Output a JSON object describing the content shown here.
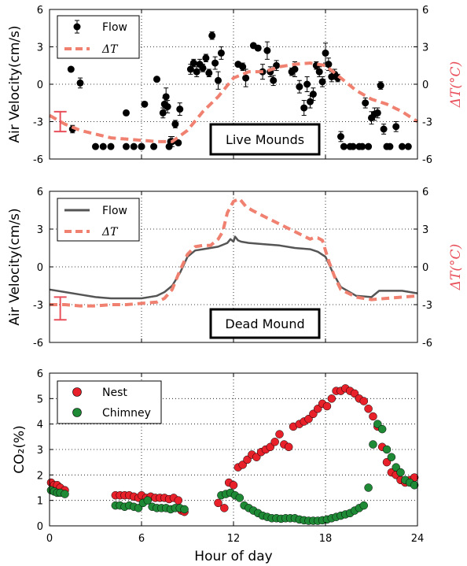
{
  "figure": {
    "xlabel": "Hour of day"
  },
  "chart_data": [
    {
      "type": "scatter",
      "panel": "top",
      "ylabel": "Air Velocity(cm/s)",
      "ylabel_right": "ΔT(°C)",
      "xlim": [
        0,
        24
      ],
      "ylim": [
        -6,
        6
      ],
      "ylim_right": [
        -6,
        6
      ],
      "yticks": [
        "-6",
        "-3",
        "0",
        "3",
        "6"
      ],
      "yticks_right": [
        "-6",
        "-3",
        "0",
        "3",
        "6"
      ],
      "grid": true,
      "legend_position": "top-left",
      "annotation": "Live Mounds",
      "legend": [
        {
          "label": "Flow",
          "kind": "marker",
          "color": "#000000"
        },
        {
          "label": "ΔT",
          "kind": "dashed",
          "color": "#f08070"
        }
      ],
      "error_bar_legend": {
        "x": 0.7,
        "center": -3.0,
        "half": 0.8,
        "color": "#e8505b"
      },
      "series": [
        {
          "name": "Flow",
          "kind": "points",
          "color": "#000000",
          "x": [
            1.5,
            2.0,
            1.4,
            3.0,
            3.5,
            4.0,
            5.0,
            5.0,
            5.5,
            6.0,
            6.2,
            6.0,
            6.8,
            7.0,
            7.4,
            7.5,
            7.6,
            7.7,
            7.8,
            7.9,
            8.0,
            8.2,
            8.5,
            8.4,
            9.2,
            9.4,
            9.6,
            9.8,
            10.0,
            10.2,
            10.4,
            10.6,
            10.8,
            11.0,
            11.2,
            12.3,
            12.6,
            12.8,
            13.3,
            13.6,
            13.9,
            14.2,
            14.4,
            14.6,
            14.8,
            15.8,
            16.0,
            16.3,
            16.6,
            16.8,
            17.0,
            17.2,
            17.4,
            17.6,
            17.8,
            18.0,
            18.2,
            18.4,
            18.6,
            18.8,
            19.0,
            19.2,
            19.6,
            19.8,
            20.2,
            20.4,
            20.6,
            20.8,
            21.0,
            21.2,
            21.4,
            21.6,
            21.8,
            22.0,
            22.2,
            22.6,
            23.0,
            23.4
          ],
          "y": [
            -3.6,
            0.1,
            1.2,
            -5.0,
            -5.0,
            -5.0,
            -5.0,
            -2.3,
            -5.0,
            -5.0,
            -1.6,
            -5.0,
            -5.0,
            0.4,
            -2.3,
            -1.6,
            -1.0,
            -1.8,
            -5.0,
            -4.6,
            -4.6,
            -3.2,
            -2.0,
            -4.7,
            1.2,
            1.7,
            1.0,
            1.6,
            1.3,
            2.1,
            0.9,
            3.9,
            1.7,
            0.3,
            2.5,
            1.6,
            1.4,
            0.5,
            3.1,
            2.9,
            1.0,
            2.7,
            1.0,
            0.3,
            1.5,
            1.0,
            1.2,
            -0.2,
            -1.9,
            0.0,
            -1.4,
            -0.8,
            1.5,
            1.0,
            0.2,
            2.5,
            1.6,
            0.6,
            0.8,
            0.5,
            -4.2,
            -5.0,
            -5.0,
            -5.0,
            -5.0,
            -5.0,
            -1.5,
            -5.0,
            -2.7,
            -2.4,
            -2.3,
            -0.1,
            -3.6,
            -5.0,
            -5.0,
            -3.4,
            -5.0,
            -5.0
          ],
          "err": [
            0.3,
            0.4,
            0,
            0,
            0,
            0,
            0,
            0,
            0,
            0,
            0,
            0,
            0,
            0,
            0.4,
            0.5,
            0.7,
            0.5,
            0,
            0.4,
            0.4,
            0.3,
            0.5,
            0,
            0.4,
            0.3,
            0.4,
            0.4,
            0.3,
            0.3,
            0.3,
            0.3,
            0.5,
            0.7,
            0.5,
            0,
            0.3,
            0.7,
            0,
            0.2,
            0.6,
            0.7,
            0.4,
            0.4,
            0.4,
            0.3,
            0.6,
            0.5,
            0.6,
            0.6,
            0.5,
            0.5,
            0.3,
            0.4,
            0.4,
            0.8,
            0.5,
            0.4,
            0.4,
            0.3,
            0.4,
            0,
            0,
            0,
            0,
            0,
            0.4,
            0,
            0.5,
            0.5,
            0.4,
            0.3,
            0.4,
            0,
            0,
            0.4,
            0,
            0
          ]
        },
        {
          "name": "ΔT",
          "kind": "dashed",
          "color": "#f08070",
          "axis": "right",
          "x": [
            0,
            1,
            2,
            3,
            4,
            5,
            6,
            7,
            8,
            9,
            10,
            11,
            12,
            13,
            14,
            15,
            16,
            17,
            18,
            19,
            20,
            21,
            22,
            23,
            24
          ],
          "y": [
            -2.5,
            -3.2,
            -3.7,
            -4.0,
            -4.3,
            -4.4,
            -4.5,
            -4.6,
            -4.6,
            -3.7,
            -2.2,
            -1.0,
            0.5,
            1.0,
            1.0,
            1.4,
            1.6,
            1.7,
            1.5,
            0.5,
            -0.5,
            -1.2,
            -1.6,
            -2.2,
            -3.0
          ]
        }
      ]
    },
    {
      "type": "line",
      "panel": "middle",
      "ylabel": "Air Velocity(cm/s)",
      "ylabel_right": "ΔT(°C)",
      "xlim": [
        0,
        24
      ],
      "ylim": [
        -6,
        6
      ],
      "ylim_right": [
        -6,
        6
      ],
      "yticks": [
        "-6",
        "-3",
        "0",
        "3",
        "6"
      ],
      "yticks_right": [
        "-6",
        "-3",
        "0",
        "3",
        "6"
      ],
      "grid": true,
      "legend_position": "top-left",
      "annotation": "Dead Mound",
      "legend": [
        {
          "label": "Flow",
          "kind": "solid",
          "color": "#555555"
        },
        {
          "label": "ΔT",
          "kind": "dashed",
          "color": "#f08070"
        }
      ],
      "error_bar_legend": {
        "x": 0.7,
        "center": -3.3,
        "half": 0.9,
        "color": "#e8505b"
      },
      "series": [
        {
          "name": "Flow",
          "kind": "solid",
          "color": "#555555",
          "x": [
            0,
            1,
            2,
            3,
            4,
            5,
            6,
            7,
            7.5,
            8,
            8.5,
            9,
            9.5,
            10,
            11,
            11.6,
            11.8,
            12,
            12.1,
            12.3,
            12.5,
            13,
            14,
            15,
            16,
            17,
            17.5,
            18,
            18.5,
            19,
            20,
            21,
            21.5,
            22,
            23,
            24
          ],
          "y": [
            -1.8,
            -2.0,
            -2.2,
            -2.4,
            -2.5,
            -2.5,
            -2.5,
            -2.3,
            -2.0,
            -1.5,
            -0.5,
            0.8,
            1.3,
            1.4,
            1.6,
            1.9,
            2.2,
            2.0,
            2.4,
            2.1,
            2.0,
            1.9,
            1.8,
            1.7,
            1.5,
            1.4,
            1.2,
            0.8,
            -0.5,
            -1.6,
            -2.3,
            -2.4,
            -1.9,
            -1.9,
            -1.9,
            -2.1
          ]
        },
        {
          "name": "ΔT",
          "kind": "dashed",
          "color": "#f08070",
          "axis": "right",
          "x": [
            0,
            1,
            2,
            3,
            4,
            5,
            6,
            7,
            7.5,
            8,
            8.5,
            9,
            9.5,
            10,
            10.5,
            11,
            11.3,
            11.6,
            12,
            12.4,
            12.8,
            13.2,
            14,
            15,
            16,
            17,
            17.2,
            17.5,
            17.8,
            18.2,
            18.6,
            19,
            20,
            21,
            22,
            23,
            24
          ],
          "y": [
            -3.0,
            -3.0,
            -3.1,
            -3.1,
            -3.0,
            -3.0,
            -2.9,
            -2.8,
            -2.5,
            -1.8,
            -0.3,
            1.0,
            1.6,
            1.7,
            1.7,
            2.2,
            2.8,
            4.3,
            5.2,
            5.4,
            4.8,
            4.5,
            4.0,
            3.4,
            2.8,
            2.2,
            2.3,
            2.3,
            2.1,
            0.5,
            -0.8,
            -1.8,
            -2.4,
            -2.6,
            -2.5,
            -2.4,
            -2.3
          ]
        }
      ]
    },
    {
      "type": "scatter",
      "panel": "bottom",
      "ylabel": "CO₂(%)",
      "xlim": [
        0,
        24
      ],
      "ylim": [
        0,
        6
      ],
      "xticks": [
        "0",
        "6",
        "12",
        "18",
        "24"
      ],
      "yticks": [
        "0",
        "1",
        "2",
        "3",
        "4",
        "5",
        "6"
      ],
      "grid": true,
      "legend_position": "top-left",
      "legend": [
        {
          "label": "Nest",
          "kind": "marker",
          "color": "#e8202a"
        },
        {
          "label": "Chimney",
          "kind": "marker",
          "color": "#1e8a35"
        }
      ],
      "series": [
        {
          "name": "Nest",
          "color": "#e8202a",
          "x": [
            0.1,
            0.3,
            0.5,
            0.7,
            1.0,
            4.3,
            4.6,
            4.9,
            5.2,
            5.5,
            5.8,
            6.0,
            6.3,
            6.6,
            6.9,
            7.2,
            7.5,
            7.8,
            8.1,
            8.4,
            8.6,
            8.8,
            11.0,
            11.4,
            11.7,
            12.0,
            12.3,
            12.6,
            12.9,
            13.2,
            13.5,
            13.8,
            14.1,
            14.4,
            14.7,
            15.0,
            15.3,
            15.6,
            15.9,
            16.3,
            16.6,
            16.9,
            17.2,
            17.5,
            17.8,
            18.1,
            18.4,
            18.7,
            19.0,
            19.3,
            19.6,
            19.9,
            20.2,
            20.5,
            20.8,
            21.1,
            21.4,
            21.7,
            22.0,
            22.3,
            22.6,
            22.9,
            23.2,
            23.5,
            23.8
          ],
          "y": [
            1.7,
            1.6,
            1.6,
            1.5,
            1.4,
            1.2,
            1.2,
            1.2,
            1.2,
            1.15,
            1.1,
            1.2,
            1.1,
            1.15,
            1.1,
            1.1,
            1.1,
            1.05,
            1.1,
            1.0,
            0.6,
            0.55,
            0.9,
            0.7,
            1.7,
            1.6,
            2.3,
            2.4,
            2.6,
            2.8,
            2.7,
            2.9,
            3.0,
            3.1,
            3.3,
            3.6,
            3.2,
            3.1,
            3.9,
            4.0,
            4.1,
            4.2,
            4.4,
            4.6,
            4.8,
            4.7,
            5.0,
            5.3,
            5.3,
            5.4,
            5.3,
            5.2,
            5.0,
            4.9,
            4.6,
            4.3,
            3.9,
            3.1,
            2.5,
            2.1,
            2.0,
            1.8,
            1.7,
            1.8,
            1.9
          ]
        },
        {
          "name": "Chimney",
          "color": "#1e8a35",
          "x": [
            0.1,
            0.3,
            0.5,
            0.7,
            1.0,
            4.3,
            4.6,
            4.9,
            5.2,
            5.5,
            5.8,
            6.1,
            6.4,
            6.7,
            7.0,
            7.3,
            7.6,
            7.9,
            8.2,
            8.5,
            8.8,
            11.2,
            11.5,
            11.8,
            12.1,
            12.4,
            12.7,
            13.0,
            13.3,
            13.6,
            13.9,
            14.2,
            14.5,
            14.8,
            15.1,
            15.4,
            15.7,
            16.0,
            16.3,
            16.6,
            16.9,
            17.2,
            17.5,
            17.8,
            18.1,
            18.4,
            18.7,
            19.0,
            19.3,
            19.6,
            19.9,
            20.2,
            20.5,
            20.8,
            21.1,
            21.4,
            21.7,
            22.0,
            22.3,
            22.6,
            22.9,
            23.2,
            23.5,
            23.8
          ],
          "y": [
            1.4,
            1.35,
            1.3,
            1.3,
            1.25,
            0.8,
            0.8,
            0.75,
            0.8,
            0.75,
            0.7,
            0.9,
            1.0,
            0.75,
            0.7,
            0.7,
            0.7,
            0.65,
            0.7,
            0.7,
            0.65,
            1.2,
            1.25,
            1.3,
            1.2,
            1.1,
            0.8,
            0.7,
            0.6,
            0.5,
            0.4,
            0.35,
            0.3,
            0.3,
            0.28,
            0.3,
            0.3,
            0.3,
            0.25,
            0.22,
            0.2,
            0.2,
            0.2,
            0.22,
            0.25,
            0.3,
            0.35,
            0.4,
            0.45,
            0.5,
            0.6,
            0.7,
            0.8,
            1.5,
            3.2,
            4.0,
            3.8,
            3.0,
            2.7,
            2.3,
            2.1,
            1.8,
            1.7,
            1.6
          ]
        }
      ]
    }
  ]
}
